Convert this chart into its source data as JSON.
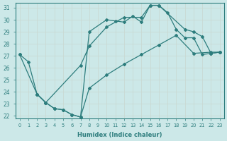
{
  "xlabel": "Humidex (Indice chaleur)",
  "bg_color": "#cce8e8",
  "grid_color": "#d4e8e8",
  "line_color": "#2d7d7d",
  "xlim": [
    -0.5,
    23.5
  ],
  "ylim": [
    21.8,
    31.4
  ],
  "xticks": [
    0,
    1,
    2,
    3,
    4,
    5,
    6,
    7,
    8,
    9,
    10,
    11,
    12,
    13,
    14,
    15,
    16,
    17,
    18,
    19,
    20,
    21,
    22,
    23
  ],
  "yticks": [
    22,
    23,
    24,
    25,
    26,
    27,
    28,
    29,
    30,
    31
  ],
  "line1_x": [
    0,
    1,
    2,
    3,
    4,
    5,
    6,
    7,
    8,
    10,
    11,
    12,
    13,
    14,
    15,
    16,
    17,
    18,
    19,
    20,
    21,
    22,
    23
  ],
  "line1_y": [
    27.1,
    26.5,
    23.8,
    23.1,
    22.6,
    22.5,
    22.1,
    21.9,
    29.0,
    30.0,
    29.9,
    29.8,
    30.3,
    29.8,
    31.2,
    31.2,
    30.6,
    29.2,
    28.5,
    28.5,
    27.1,
    27.2,
    27.3
  ],
  "line2_x": [
    2,
    3,
    7,
    8,
    10,
    12,
    14,
    15,
    16,
    19,
    20,
    21,
    22,
    23
  ],
  "line2_y": [
    23.8,
    23.1,
    26.2,
    27.8,
    29.4,
    30.2,
    30.2,
    31.2,
    31.2,
    29.2,
    29.0,
    28.6,
    27.2,
    27.3
  ],
  "line3_x": [
    0,
    2,
    3,
    4,
    5,
    6,
    7,
    8,
    10,
    12,
    14,
    16,
    18,
    20,
    22,
    23
  ],
  "line3_y": [
    27.1,
    23.8,
    23.1,
    22.6,
    22.5,
    22.1,
    21.9,
    24.3,
    25.4,
    26.3,
    27.1,
    27.9,
    28.7,
    27.2,
    27.3,
    27.3
  ]
}
